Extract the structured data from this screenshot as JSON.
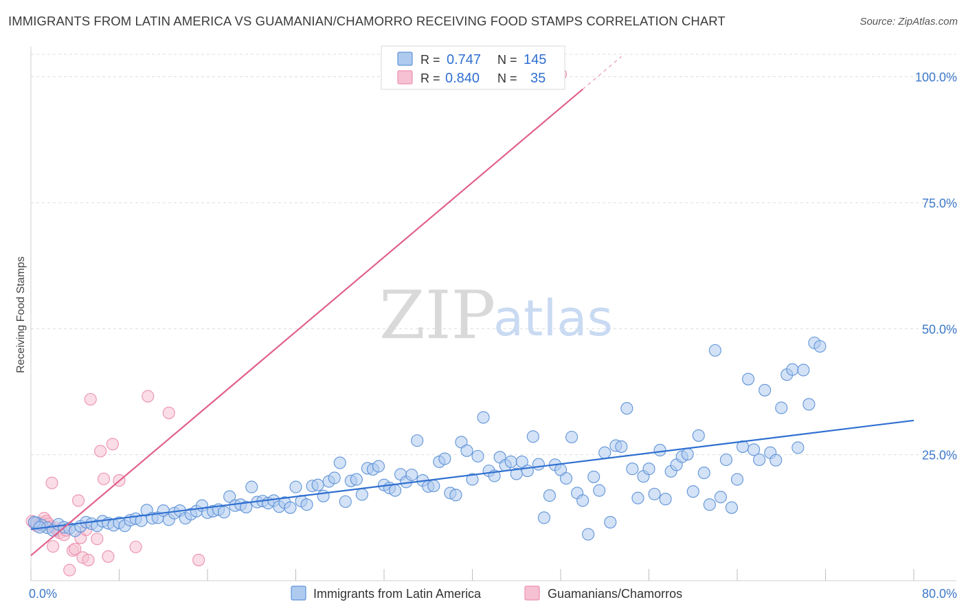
{
  "header": {
    "title": "IMMIGRANTS FROM LATIN AMERICA VS GUAMANIAN/CHAMORRO RECEIVING FOOD STAMPS CORRELATION CHART",
    "source": "Source: ZipAtlas.com"
  },
  "watermark": {
    "zip": "ZIP",
    "atlas": "atlas"
  },
  "colors": {
    "blue": "#2f6fd0",
    "blue_fill": "#aecbef",
    "blue_stroke": "#5f93d8",
    "pink": "#e0608a",
    "pink_fill": "#f6c1d2",
    "pink_stroke": "#ec90ae",
    "grid": "#dcdcdc",
    "axis_label": "#3c78c8"
  },
  "legend": {
    "r_label": "R =",
    "n_label": "N =",
    "rows": [
      {
        "r": "0.747",
        "n": "145"
      },
      {
        "r": "0.840",
        "n": "35"
      }
    ]
  },
  "bottom_legend": [
    "Immigrants from Latin America",
    "Guamanians/Chamorros"
  ],
  "chart_data": {
    "type": "scatter",
    "title": "IMMIGRANTS FROM LATIN AMERICA VS GUAMANIAN/CHAMORRO RECEIVING FOOD STAMPS CORRELATION CHART",
    "xlabel": "",
    "ylabel": "Receiving Food Stamps",
    "xlim": [
      0,
      80
    ],
    "ylim": [
      0,
      105
    ],
    "x_tick_labels": [
      "0.0%",
      "80.0%"
    ],
    "y_ticks": [
      25,
      50,
      75,
      100
    ],
    "y_tick_labels": [
      "25.0%",
      "50.0%",
      "75.0%",
      "100.0%"
    ],
    "grid": true,
    "series": [
      {
        "name": "Immigrants from Latin America",
        "r": 0.747,
        "n": 145,
        "trend": {
          "x": [
            0,
            80
          ],
          "y": [
            10.2,
            31.8
          ]
        },
        "points": [
          [
            0.5,
            11.5
          ],
          [
            1.0,
            11.0
          ],
          [
            1.5,
            10.5
          ],
          [
            2.0,
            10.0
          ],
          [
            2.5,
            11.2
          ],
          [
            3.0,
            10.6
          ],
          [
            3.5,
            10.4
          ],
          [
            4.0,
            9.9
          ],
          [
            4.5,
            10.8
          ],
          [
            5.0,
            11.6
          ],
          [
            5.5,
            11.3
          ],
          [
            6.0,
            10.9
          ],
          [
            6.5,
            11.8
          ],
          [
            7.0,
            11.4
          ],
          [
            7.5,
            11.0
          ],
          [
            8.0,
            11.5
          ],
          [
            8.5,
            10.9
          ],
          [
            9.0,
            12.0
          ],
          [
            9.5,
            12.3
          ],
          [
            10.0,
            11.9
          ],
          [
            10.5,
            14.0
          ],
          [
            11.0,
            12.4
          ],
          [
            11.5,
            12.5
          ],
          [
            12.0,
            13.9
          ],
          [
            12.5,
            12.1
          ],
          [
            13.0,
            13.4
          ],
          [
            13.5,
            13.9
          ],
          [
            14.0,
            12.4
          ],
          [
            14.5,
            13.2
          ],
          [
            15.0,
            13.8
          ],
          [
            15.5,
            14.9
          ],
          [
            16.0,
            13.5
          ],
          [
            16.5,
            13.8
          ],
          [
            17.0,
            14.1
          ],
          [
            17.5,
            13.6
          ],
          [
            18.0,
            16.7
          ],
          [
            18.5,
            14.9
          ],
          [
            19.0,
            15.1
          ],
          [
            19.5,
            14.6
          ],
          [
            20.0,
            18.6
          ],
          [
            20.5,
            15.6
          ],
          [
            21.0,
            15.8
          ],
          [
            21.5,
            15.4
          ],
          [
            22.0,
            15.9
          ],
          [
            22.5,
            14.7
          ],
          [
            23.0,
            15.5
          ],
          [
            23.5,
            14.5
          ],
          [
            24.0,
            18.6
          ],
          [
            24.5,
            15.8
          ],
          [
            25.0,
            15.1
          ],
          [
            25.5,
            18.8
          ],
          [
            26.0,
            19.0
          ],
          [
            26.5,
            16.8
          ],
          [
            27.0,
            19.7
          ],
          [
            27.5,
            20.4
          ],
          [
            28.0,
            23.4
          ],
          [
            28.5,
            15.7
          ],
          [
            29.0,
            19.8
          ],
          [
            29.5,
            20.1
          ],
          [
            30.0,
            17.1
          ],
          [
            30.5,
            22.3
          ],
          [
            31.0,
            22.1
          ],
          [
            31.5,
            22.7
          ],
          [
            32.0,
            19.0
          ],
          [
            32.5,
            18.4
          ],
          [
            33.0,
            17.9
          ],
          [
            33.5,
            21.1
          ],
          [
            34.0,
            19.6
          ],
          [
            34.5,
            21.0
          ],
          [
            35.0,
            27.8
          ],
          [
            35.5,
            19.9
          ],
          [
            36.0,
            18.7
          ],
          [
            36.5,
            18.8
          ],
          [
            37.0,
            23.6
          ],
          [
            37.5,
            24.2
          ],
          [
            38.0,
            17.4
          ],
          [
            38.5,
            17.0
          ],
          [
            39.0,
            27.5
          ],
          [
            39.5,
            25.8
          ],
          [
            40.0,
            20.1
          ],
          [
            40.5,
            24.7
          ],
          [
            41.0,
            32.4
          ],
          [
            41.5,
            21.8
          ],
          [
            42.0,
            20.8
          ],
          [
            42.5,
            24.5
          ],
          [
            43.0,
            22.9
          ],
          [
            43.5,
            23.6
          ],
          [
            44.0,
            21.2
          ],
          [
            44.5,
            23.6
          ],
          [
            45.0,
            21.8
          ],
          [
            45.5,
            28.6
          ],
          [
            46.0,
            23.1
          ],
          [
            46.5,
            12.5
          ],
          [
            47.0,
            16.9
          ],
          [
            47.5,
            23.0
          ],
          [
            48.0,
            22.0
          ],
          [
            48.5,
            20.3
          ],
          [
            49.0,
            28.5
          ],
          [
            49.5,
            17.4
          ],
          [
            50.0,
            15.9
          ],
          [
            50.5,
            9.2
          ],
          [
            51.0,
            20.6
          ],
          [
            51.5,
            17.9
          ],
          [
            52.0,
            25.4
          ],
          [
            52.5,
            11.6
          ],
          [
            53.0,
            26.8
          ],
          [
            53.5,
            26.6
          ],
          [
            54.0,
            34.2
          ],
          [
            54.5,
            22.2
          ],
          [
            55.0,
            16.4
          ],
          [
            55.5,
            20.7
          ],
          [
            56.0,
            22.2
          ],
          [
            56.5,
            17.2
          ],
          [
            57.0,
            25.9
          ],
          [
            57.5,
            16.2
          ],
          [
            58.0,
            21.7
          ],
          [
            58.5,
            23.0
          ],
          [
            59.0,
            24.6
          ],
          [
            59.5,
            25.1
          ],
          [
            60.0,
            17.7
          ],
          [
            60.5,
            28.8
          ],
          [
            61.0,
            21.4
          ],
          [
            61.5,
            15.1
          ],
          [
            62.0,
            45.7
          ],
          [
            62.5,
            16.6
          ],
          [
            63.0,
            24.0
          ],
          [
            63.5,
            14.5
          ],
          [
            64.0,
            20.1
          ],
          [
            64.5,
            26.6
          ],
          [
            65.0,
            40.0
          ],
          [
            65.5,
            26.0
          ],
          [
            66.0,
            24.0
          ],
          [
            66.5,
            37.8
          ],
          [
            67.0,
            25.4
          ],
          [
            67.5,
            23.9
          ],
          [
            68.0,
            34.3
          ],
          [
            68.5,
            40.9
          ],
          [
            69.0,
            41.9
          ],
          [
            69.5,
            26.4
          ],
          [
            70.0,
            41.8
          ],
          [
            70.5,
            35.0
          ],
          [
            71.0,
            47.2
          ],
          [
            71.5,
            46.5
          ],
          [
            0.3,
            11.6
          ],
          [
            0.8,
            10.6
          ]
        ]
      },
      {
        "name": "Guamanians/Chamorros",
        "r": 0.84,
        "n": 35,
        "trend": {
          "x": [
            0,
            53.5
          ],
          "y": [
            5.0,
            104.0
          ]
        },
        "points": [
          [
            0.1,
            11.8
          ],
          [
            0.3,
            11.4
          ],
          [
            0.5,
            10.9
          ],
          [
            0.8,
            11.2
          ],
          [
            1.0,
            11.5
          ],
          [
            1.2,
            12.4
          ],
          [
            1.4,
            11.8
          ],
          [
            1.6,
            11.3
          ],
          [
            1.8,
            10.7
          ],
          [
            2.0,
            6.8
          ],
          [
            2.2,
            10.5
          ],
          [
            2.4,
            9.9
          ],
          [
            2.6,
            9.5
          ],
          [
            3.0,
            9.1
          ],
          [
            3.2,
            10.0
          ],
          [
            3.5,
            2.1
          ],
          [
            3.8,
            6.0
          ],
          [
            4.0,
            6.3
          ],
          [
            4.3,
            15.9
          ],
          [
            4.5,
            8.5
          ],
          [
            4.7,
            4.6
          ],
          [
            5.0,
            10.1
          ],
          [
            5.2,
            4.1
          ],
          [
            5.4,
            36.0
          ],
          [
            6.0,
            8.3
          ],
          [
            6.3,
            25.7
          ],
          [
            6.6,
            20.2
          ],
          [
            7.0,
            4.8
          ],
          [
            7.4,
            27.1
          ],
          [
            8.0,
            19.9
          ],
          [
            9.5,
            6.7
          ],
          [
            10.6,
            36.6
          ],
          [
            12.5,
            33.3
          ],
          [
            1.9,
            19.4
          ],
          [
            15.2,
            4.1
          ]
        ]
      }
    ]
  }
}
